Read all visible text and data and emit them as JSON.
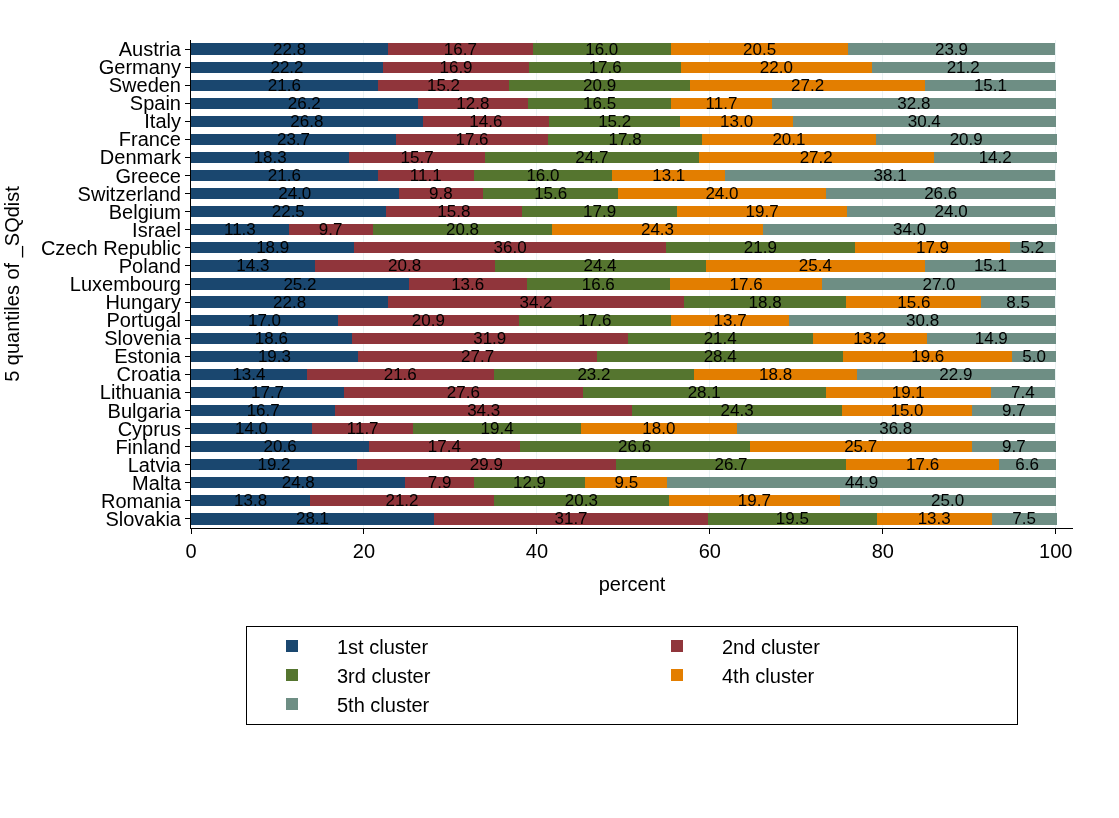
{
  "chart_data": {
    "type": "bar",
    "orientation": "horizontal",
    "stacked": true,
    "xlabel": "percent",
    "ylabel": "5 quantiles of _SQdist",
    "categories": [
      "Austria",
      "Germany",
      "Sweden",
      "Spain",
      "Italy",
      "France",
      "Denmark",
      "Greece",
      "Switzerland",
      "Belgium",
      "Israel",
      "Czech Republic",
      "Poland",
      "Luxembourg",
      "Hungary",
      "Portugal",
      "Slovenia",
      "Estonia",
      "Croatia",
      "Lithuania",
      "Bulgaria",
      "Cyprus",
      "Finland",
      "Latvia",
      "Malta",
      "Romania",
      "Slovakia"
    ],
    "series": [
      {
        "name": "1st cluster",
        "color": "#1a476f",
        "values": [
          22.8,
          22.2,
          21.6,
          26.2,
          26.8,
          23.7,
          18.3,
          21.6,
          24.0,
          22.5,
          11.3,
          18.9,
          14.3,
          25.2,
          22.8,
          17.0,
          18.6,
          19.3,
          13.4,
          17.7,
          16.7,
          14.0,
          20.6,
          19.2,
          24.8,
          13.8,
          28.1
        ],
        "value_labels": [
          "22.8",
          "22.2",
          "21.6",
          "26.2",
          "26.8",
          "23.7",
          "18.3",
          "21.6",
          "24.0",
          "22.5",
          "11.3",
          "18.9",
          "14.3",
          "25.2",
          "22.8",
          "17.0",
          "18.6",
          "19.3",
          "13.4",
          "17.7",
          "16.7",
          "14.0",
          "20.6",
          "19.2",
          "24.8",
          "13.8",
          "28.1"
        ]
      },
      {
        "name": "2nd cluster",
        "color": "#90353b",
        "values": [
          16.7,
          16.9,
          15.2,
          12.8,
          14.6,
          17.6,
          15.7,
          11.1,
          9.8,
          15.8,
          9.7,
          36.0,
          20.8,
          13.6,
          34.2,
          20.9,
          31.9,
          27.7,
          21.6,
          27.6,
          34.3,
          11.7,
          17.4,
          29.9,
          7.9,
          21.2,
          31.7
        ],
        "value_labels": [
          "16.7",
          "16.9",
          "15.2",
          "12.8",
          "14.6",
          "17.6",
          "15.7",
          "11.1",
          "9.8",
          "15.8",
          "9.7",
          "36.0",
          "20.8",
          "13.6",
          "34.2",
          "20.9",
          "31.9",
          "27.7",
          "21.6",
          "27.6",
          "34.3",
          "11.7",
          "17.4",
          "29.9",
          "7.9",
          "21.2",
          "31.7"
        ]
      },
      {
        "name": "3rd cluster",
        "color": "#55752f",
        "values": [
          16.0,
          17.6,
          20.9,
          16.5,
          15.2,
          17.8,
          24.7,
          16.0,
          15.6,
          17.9,
          20.8,
          21.9,
          24.4,
          16.6,
          18.8,
          17.6,
          21.4,
          28.4,
          23.2,
          28.1,
          24.3,
          19.4,
          26.6,
          26.7,
          12.9,
          20.3,
          19.5
        ],
        "value_labels": [
          "16.0",
          "17.6",
          "20.9",
          "16.5",
          "15.2",
          "17.8",
          "24.7",
          "16.0",
          "15.6",
          "17.9",
          "20.8",
          "21.9",
          "24.4",
          "16.6",
          "18.8",
          "17.6",
          "21.4",
          "28.4",
          "23.2",
          "28.1",
          "24.3",
          "19.4",
          "26.6",
          "26.7",
          "12.9",
          "20.3",
          "19.5"
        ]
      },
      {
        "name": "4th cluster",
        "color": "#e37e00",
        "values": [
          20.5,
          22.0,
          27.2,
          11.7,
          13.0,
          20.1,
          27.2,
          13.1,
          24.0,
          19.7,
          24.3,
          17.9,
          25.4,
          17.6,
          15.6,
          13.7,
          13.2,
          19.6,
          18.8,
          19.1,
          15.0,
          18.0,
          25.7,
          17.6,
          9.5,
          19.7,
          13.3
        ],
        "value_labels": [
          "20.5",
          "22.0",
          "27.2",
          "11.7",
          "13.0",
          "20.1",
          "27.2",
          "13.1",
          "24.0",
          "19.7",
          "24.3",
          "17.9",
          "25.4",
          "17.6",
          "15.6",
          "13.7",
          "13.2",
          "19.6",
          "18.8",
          "19.1",
          "15.0",
          "18.0",
          "25.7",
          "17.6",
          "9.5",
          "19.7",
          "13.3"
        ]
      },
      {
        "name": "5th cluster",
        "color": "#6e8e84",
        "values": [
          23.9,
          21.2,
          15.1,
          32.8,
          30.4,
          20.9,
          14.2,
          38.1,
          26.6,
          24.0,
          34.0,
          5.2,
          15.1,
          27.0,
          8.5,
          30.8,
          14.9,
          5.0,
          22.9,
          7.4,
          9.7,
          36.8,
          9.7,
          6.6,
          44.9,
          25.0,
          7.5
        ],
        "value_labels": [
          "23.9",
          "21.2",
          "15.1",
          "32.8",
          "30.4",
          "20.9",
          "14.2",
          "38.1",
          "26.6",
          "24.0",
          "34.0",
          "5.2",
          "15.1",
          "27.0",
          "8.5",
          "30.8",
          "14.9",
          "5.0",
          "22.9",
          "7.4",
          "9.7",
          "36.8",
          "9.7",
          "6.6",
          "44.9",
          "25.0",
          "7.5"
        ]
      }
    ],
    "xlim": [
      0,
      102
    ],
    "xticks": [
      0,
      20,
      40,
      60,
      80,
      100
    ],
    "grid": "x",
    "legend": "bottom"
  }
}
